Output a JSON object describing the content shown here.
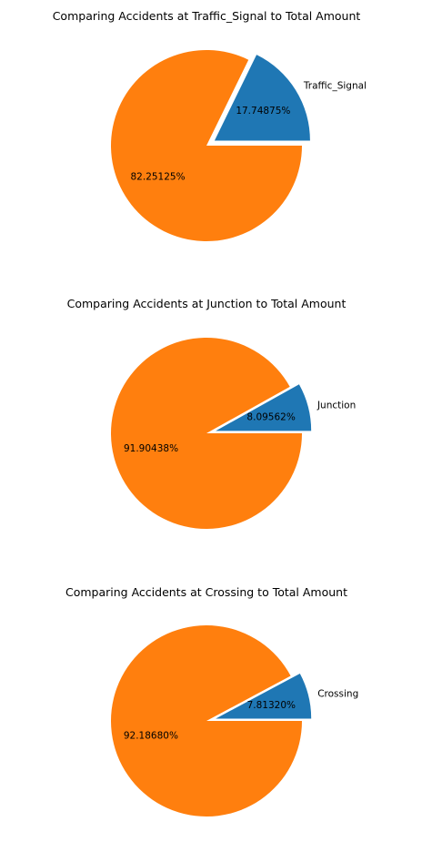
{
  "chart_data": [
    {
      "type": "pie",
      "title": "Comparing Accidents at Traffic_Signal to Total Amount",
      "slices": [
        {
          "label": "Traffic_Signal",
          "value": 17.74875,
          "pct_label": "17.74875%",
          "color": "#1f77b4",
          "exploded": true
        },
        {
          "label": "",
          "value": 82.25125,
          "pct_label": "82.25125%",
          "color": "#ff7f0e",
          "exploded": false
        }
      ]
    },
    {
      "type": "pie",
      "title": "Comparing Accidents at Junction to Total Amount",
      "slices": [
        {
          "label": "Junction",
          "value": 8.09562,
          "pct_label": "8.09562%",
          "color": "#1f77b4",
          "exploded": true
        },
        {
          "label": "",
          "value": 91.90438,
          "pct_label": "91.90438%",
          "color": "#ff7f0e",
          "exploded": false
        }
      ]
    },
    {
      "type": "pie",
      "title": "Comparing Accidents at Crossing to Total Amount",
      "slices": [
        {
          "label": "Crossing",
          "value": 7.8132,
          "pct_label": "7.81320%",
          "color": "#1f77b4",
          "exploded": true
        },
        {
          "label": "",
          "value": 92.1868,
          "pct_label": "92.18680%",
          "color": "#ff7f0e",
          "exploded": false
        }
      ]
    }
  ]
}
